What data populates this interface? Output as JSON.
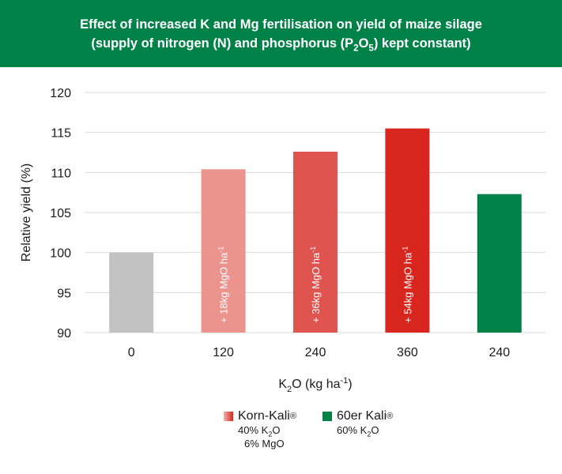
{
  "header": {
    "title_line1": "Effect of increased K and Mg fertilisation on yield of maize silage",
    "title_line2_pre": "(supply of nitrogen (N) and phosphorus (P",
    "title_line2_sub1": "2",
    "title_line2_mid": "O",
    "title_line2_sub2": "5",
    "title_line2_post": ") kept constant)",
    "background": "#008148"
  },
  "chart_data": {
    "type": "bar",
    "categories": [
      "0",
      "120",
      "240",
      "360",
      "240"
    ],
    "values": [
      100,
      110.4,
      112.6,
      115.5,
      107.3
    ],
    "bar_colors": [
      "#c2c2c2",
      "#eb948e",
      "#e0544f",
      "#d8261f",
      "#008148"
    ],
    "bar_labels": [
      "",
      "+ 18kg MgO ha-1",
      "+ 36kg MgO ha-1",
      "+ 54kg MgO ha-1",
      ""
    ],
    "bar_label_parts": [
      null,
      {
        "text": "+ 18kg MgO ha",
        "sup": "-1"
      },
      {
        "text": "+ 36kg MgO ha",
        "sup": "-1"
      },
      {
        "text": "+ 54kg MgO ha",
        "sup": "-1"
      },
      null
    ],
    "ylim": [
      90,
      120
    ],
    "yticks": [
      90,
      95,
      100,
      105,
      110,
      115,
      120
    ],
    "ylabel": "Relative yield (%)",
    "xlabel": {
      "pre": "K",
      "sub": "2",
      "mid": "O (kg ha",
      "sup": "-1",
      "post": ")"
    },
    "grid": true
  },
  "legend": {
    "items": [
      {
        "name": "Korn-Kali",
        "reg": "®",
        "color_gradient": [
          "#f2b0ab",
          "#d8261f"
        ],
        "lines": [
          {
            "pre": "40% K",
            "sub": "2",
            "post": "O"
          },
          {
            "pre": "6% MgO",
            "sub": "",
            "post": ""
          }
        ]
      },
      {
        "name": "60er Kali",
        "reg": "®",
        "color": "#008148",
        "lines": [
          {
            "pre": "60% K",
            "sub": "2",
            "post": "O"
          }
        ]
      }
    ]
  }
}
